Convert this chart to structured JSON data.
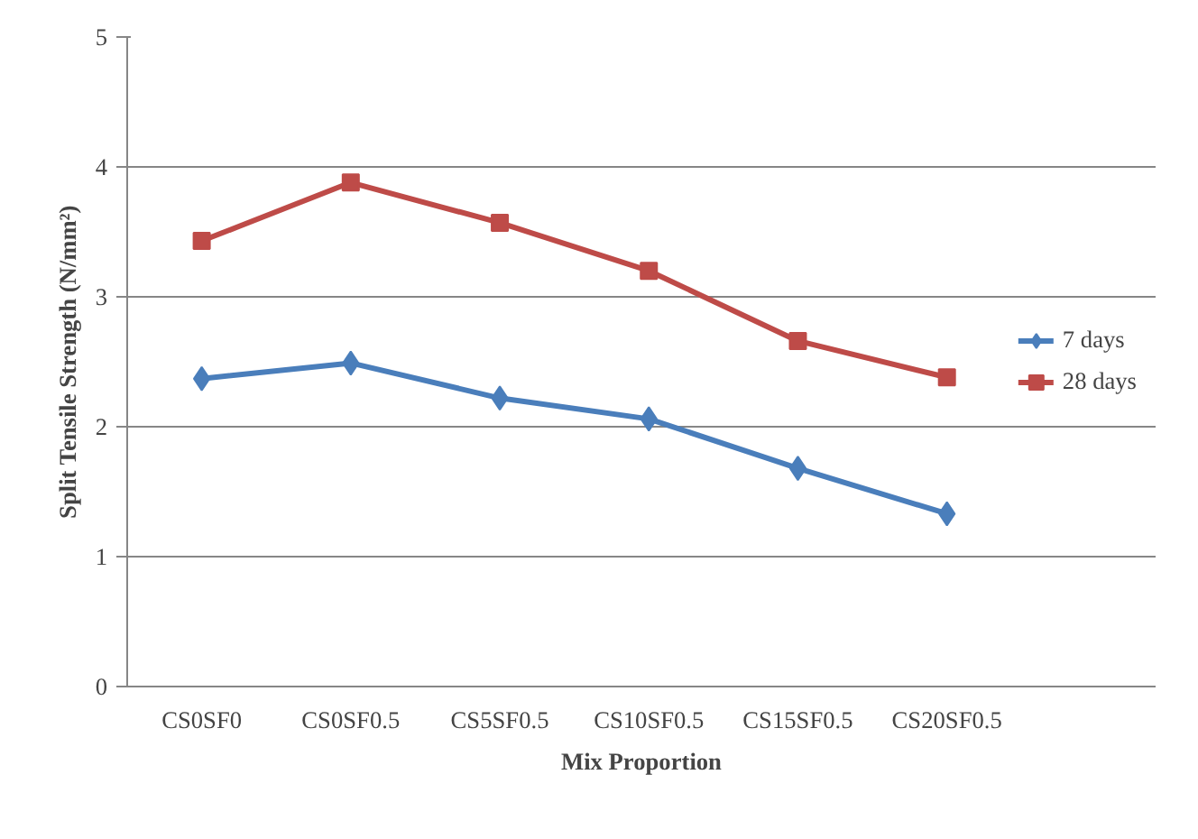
{
  "chart_data": {
    "type": "line",
    "xlabel": "Mix Proportion",
    "ylabel": "Split Tensile Strength (N/mm²)",
    "categories": [
      "CS0SF0",
      "CS0SF0.5",
      "CS5SF0.5",
      "CS10SF0.5",
      "CS15SF0.5",
      "CS20SF0.5"
    ],
    "series": [
      {
        "name": "7 days",
        "color": "#4a7ebb",
        "marker": "diamond",
        "values": [
          2.37,
          2.49,
          2.22,
          2.06,
          1.68,
          1.33
        ]
      },
      {
        "name": "28 days",
        "color": "#be4b48",
        "marker": "square",
        "values": [
          3.43,
          3.88,
          3.57,
          3.2,
          2.66,
          2.38
        ]
      }
    ],
    "ylim": [
      0,
      5
    ],
    "yticks": [
      0,
      1,
      2,
      3,
      4,
      5
    ],
    "grid": "y",
    "legend": "right",
    "line_style": "solid"
  }
}
